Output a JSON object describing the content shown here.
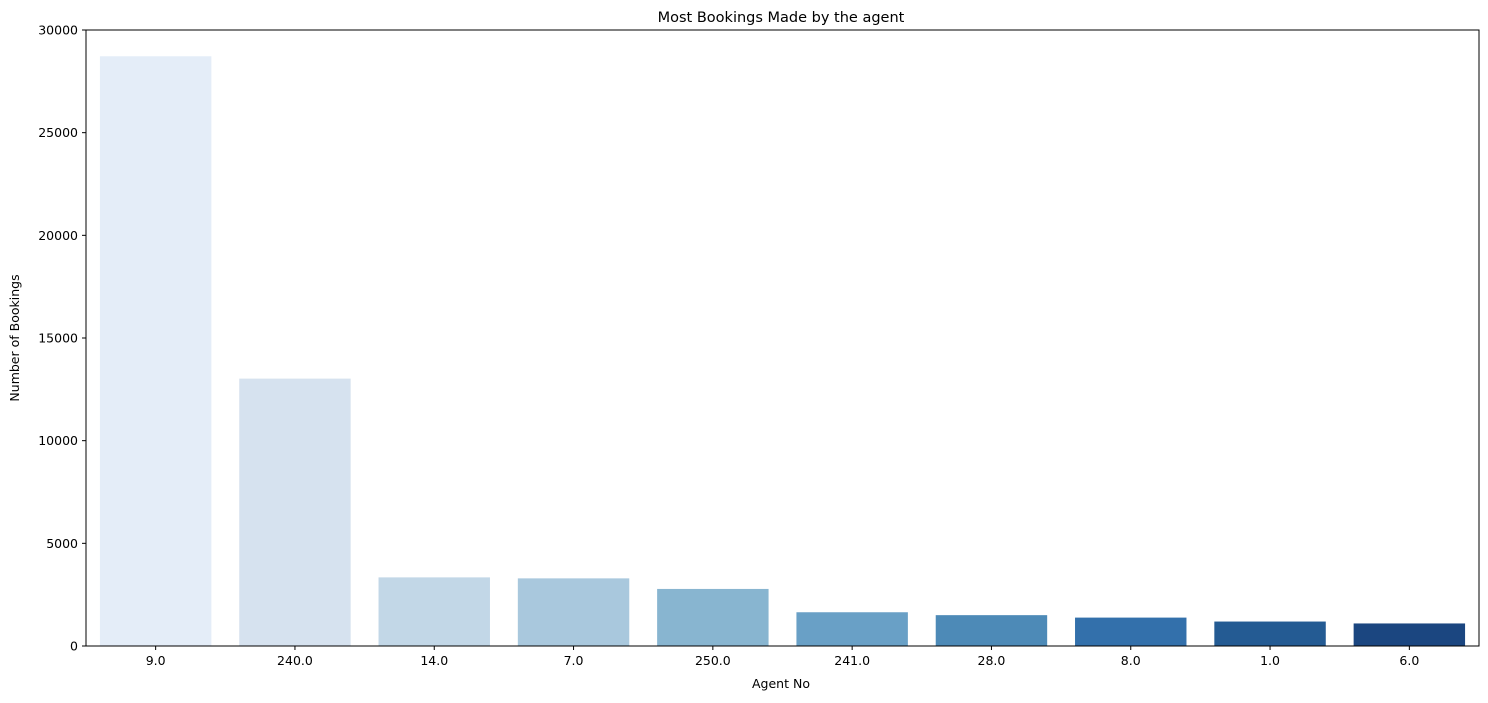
{
  "chart_data": {
    "type": "bar",
    "title": "Most Bookings Made by the agent",
    "xlabel": "Agent No",
    "ylabel": "Number of Bookings",
    "categories": [
      "9.0",
      "240.0",
      "14.0",
      "7.0",
      "250.0",
      "241.0",
      "28.0",
      "8.0",
      "1.0",
      "6.0"
    ],
    "values": [
      28721,
      13022,
      3342,
      3294,
      2779,
      1644,
      1502,
      1383,
      1191,
      1098
    ],
    "colors": [
      "#e4edf8",
      "#d6e2ef",
      "#c2d7e7",
      "#a9c8dd",
      "#88b5d0",
      "#69a0c6",
      "#4d8ab7",
      "#3370ab",
      "#245b93",
      "#1b4680"
    ],
    "ylim": [
      0,
      30000
    ],
    "yticks": [
      0,
      5000,
      10000,
      15000,
      20000,
      25000,
      30000
    ],
    "grid": false,
    "legend": "none"
  }
}
